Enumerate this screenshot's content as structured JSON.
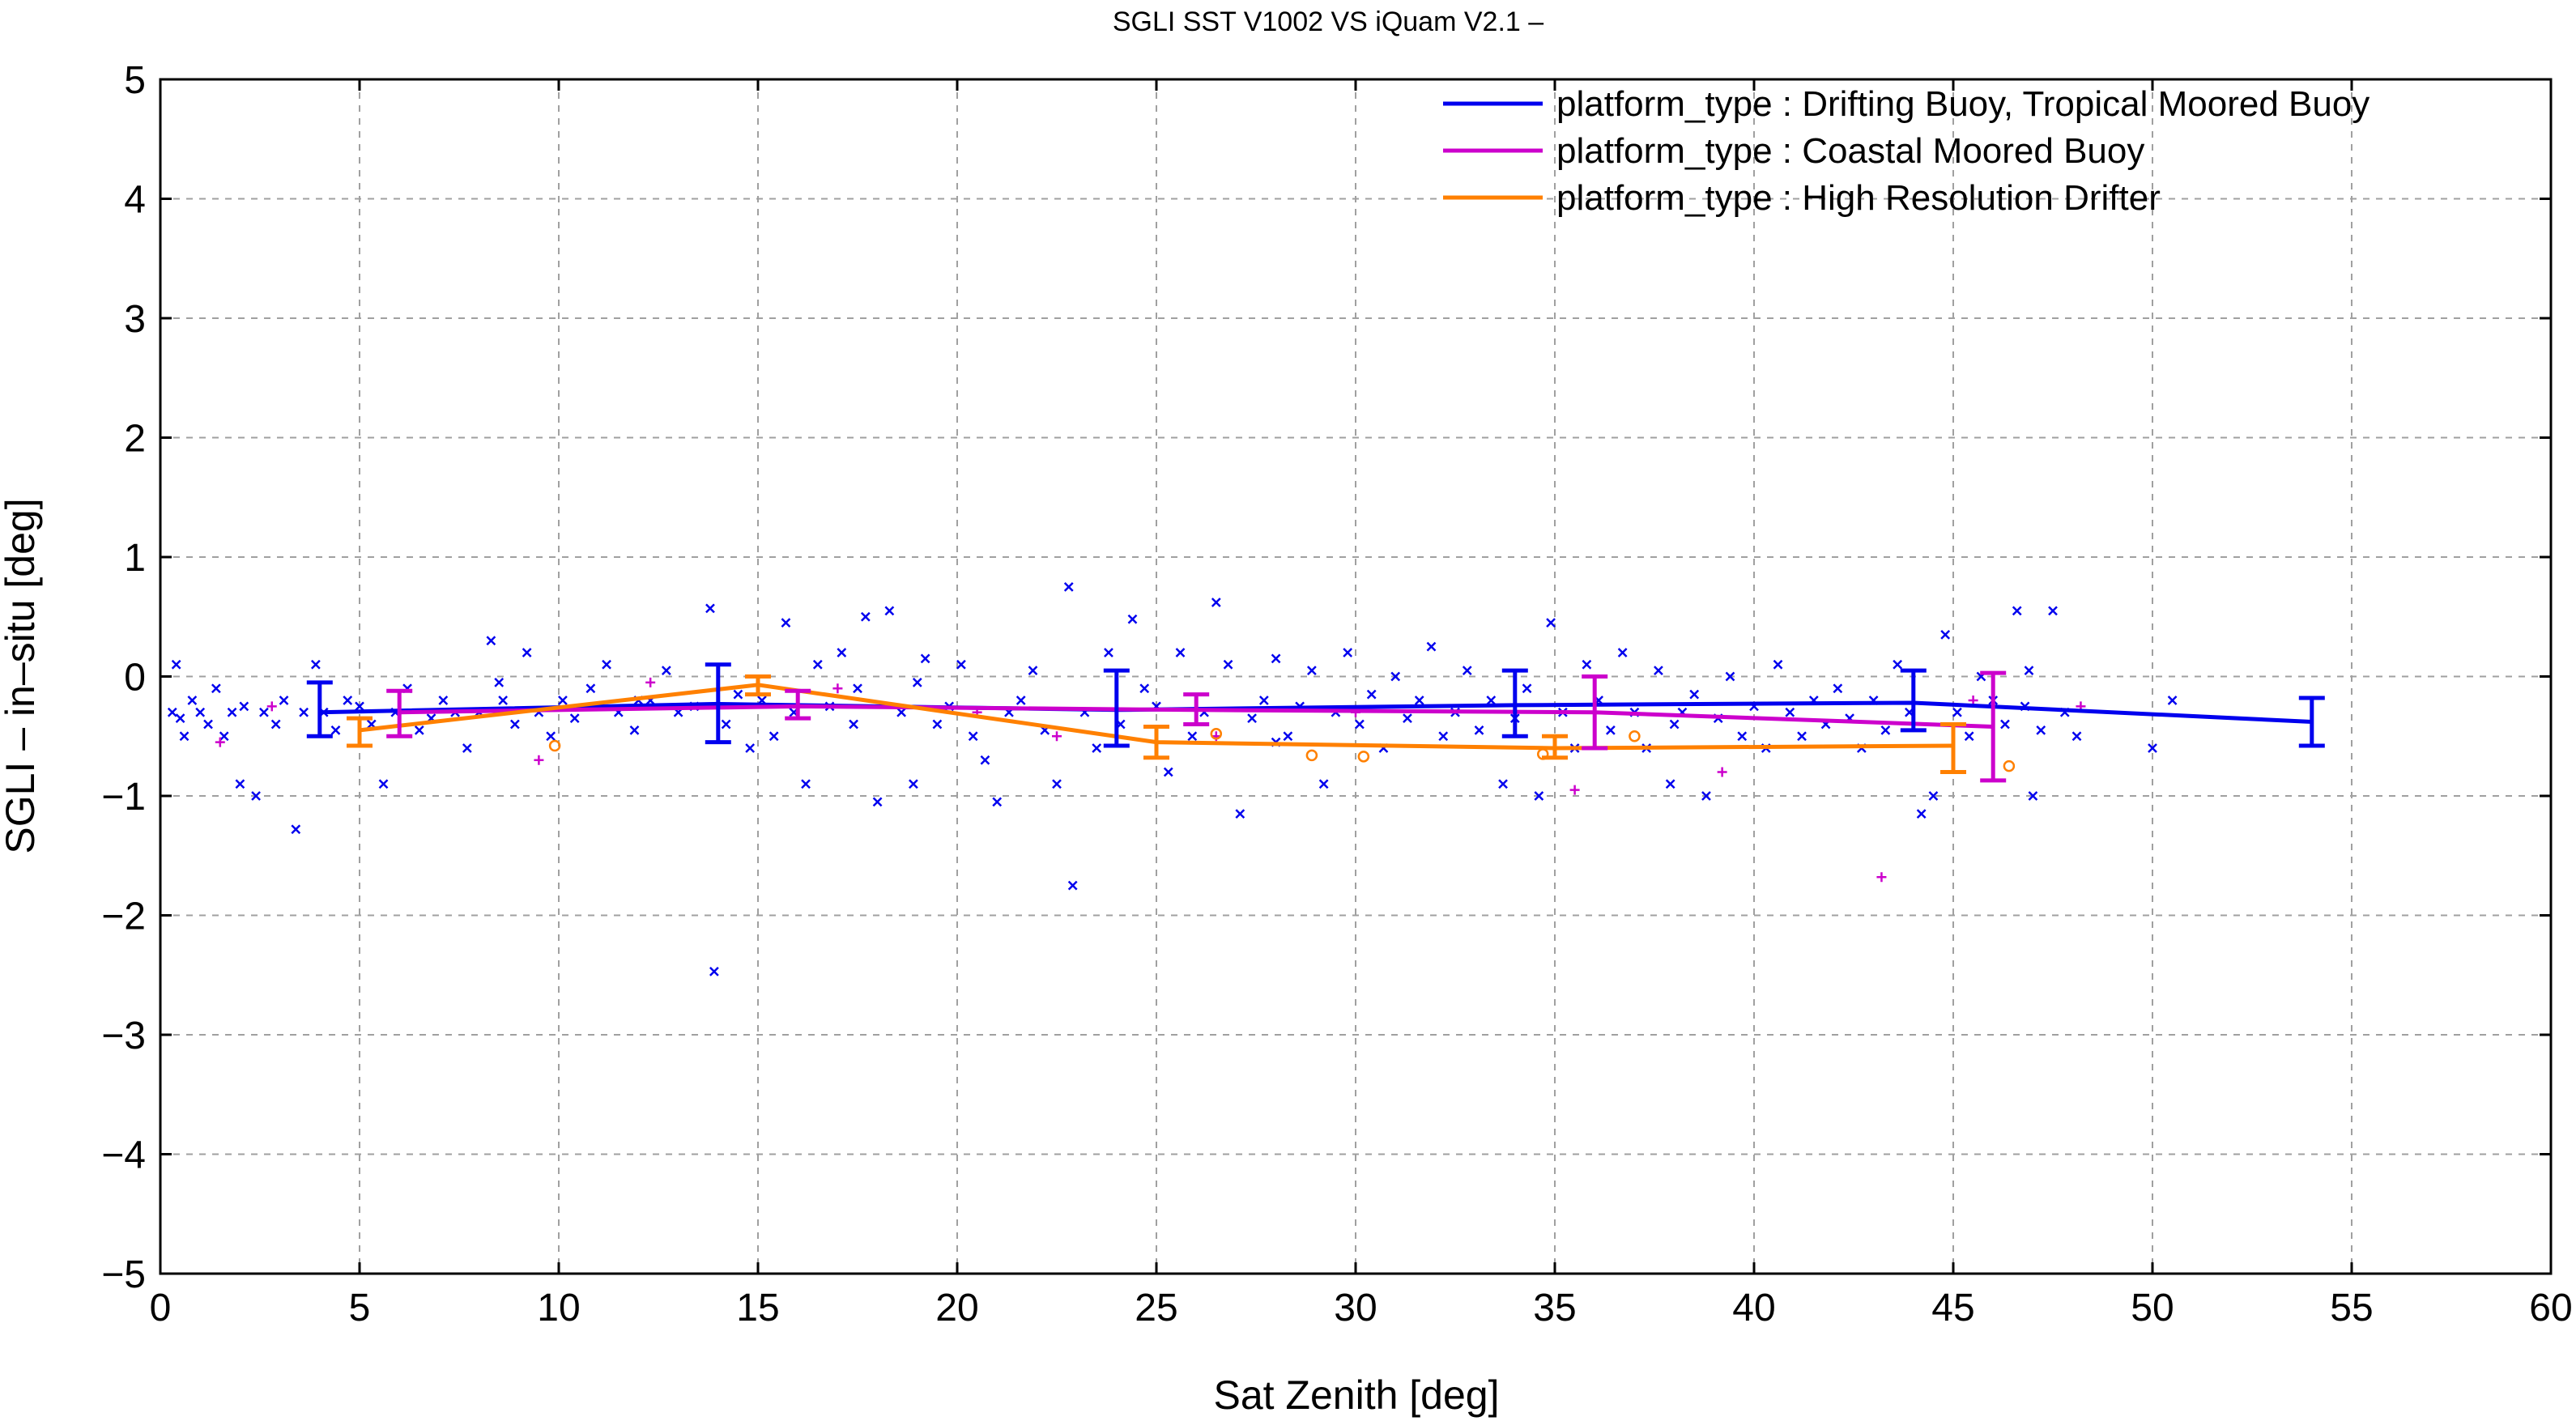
{
  "chart_data": {
    "type": "scatter",
    "title": "SGLI SST V1002 VS iQuam V2.1  –",
    "xlabel": "Sat Zenith [deg]",
    "ylabel": "SGLI – in–situ [deg]",
    "xlim": [
      0,
      60
    ],
    "ylim": [
      -5,
      5
    ],
    "xticks": [
      "0",
      "5",
      "10",
      "15",
      "20",
      "25",
      "30",
      "35",
      "40",
      "45",
      "50",
      "55",
      "60"
    ],
    "yticks": [
      "−5",
      "−4",
      "−3",
      "−2",
      "−1",
      "0",
      "1",
      "2",
      "3",
      "4",
      "5"
    ],
    "xtick_values": [
      0,
      5,
      10,
      15,
      20,
      25,
      30,
      35,
      40,
      45,
      50,
      55,
      60
    ],
    "ytick_values": [
      -5,
      -4,
      -3,
      -2,
      -1,
      0,
      1,
      2,
      3,
      4,
      5
    ],
    "grid": true,
    "legend_position": "top-right",
    "series": [
      {
        "name": "platform_type : Drifting Buoy, Tropical Moored Buoy",
        "color": "#0000ee",
        "marker": "x",
        "line": {
          "x": [
            4,
            14,
            24,
            34,
            44,
            54
          ],
          "y": [
            -0.3,
            -0.23,
            -0.28,
            -0.24,
            -0.22,
            -0.38
          ]
        },
        "errorbars": [
          {
            "x": 4,
            "ylow": -0.5,
            "yhigh": -0.05
          },
          {
            "x": 14,
            "ylow": -0.55,
            "yhigh": 0.1
          },
          {
            "x": 24,
            "ylow": -0.58,
            "yhigh": 0.05
          },
          {
            "x": 34,
            "ylow": -0.5,
            "yhigh": 0.05
          },
          {
            "x": 44,
            "ylow": -0.45,
            "yhigh": 0.05
          },
          {
            "x": 54,
            "ylow": -0.58,
            "yhigh": -0.18
          }
        ],
        "points": [
          [
            0.3,
            -0.3
          ],
          [
            0.4,
            0.1
          ],
          [
            0.5,
            -0.35
          ],
          [
            0.6,
            -0.5
          ],
          [
            0.8,
            -0.2
          ],
          [
            1.0,
            -0.3
          ],
          [
            1.2,
            -0.4
          ],
          [
            1.4,
            -0.1
          ],
          [
            1.6,
            -0.5
          ],
          [
            1.8,
            -0.3
          ],
          [
            2.0,
            -0.9
          ],
          [
            2.1,
            -0.25
          ],
          [
            2.4,
            -1.0
          ],
          [
            2.6,
            -0.3
          ],
          [
            2.9,
            -0.4
          ],
          [
            3.1,
            -0.2
          ],
          [
            3.4,
            -1.28
          ],
          [
            3.6,
            -0.3
          ],
          [
            3.9,
            0.1
          ],
          [
            4.1,
            -0.3
          ],
          [
            4.4,
            -0.45
          ],
          [
            4.7,
            -0.2
          ],
          [
            5.0,
            -0.25
          ],
          [
            5.3,
            -0.4
          ],
          [
            5.6,
            -0.9
          ],
          [
            5.9,
            -0.3
          ],
          [
            6.2,
            -0.1
          ],
          [
            6.5,
            -0.45
          ],
          [
            6.8,
            -0.35
          ],
          [
            7.1,
            -0.2
          ],
          [
            7.4,
            -0.3
          ],
          [
            7.7,
            -0.6
          ],
          [
            8.0,
            -0.3
          ],
          [
            8.3,
            0.3
          ],
          [
            8.6,
            -0.2
          ],
          [
            8.9,
            -0.4
          ],
          [
            9.2,
            0.2
          ],
          [
            9.5,
            -0.3
          ],
          [
            9.8,
            -0.5
          ],
          [
            10.1,
            -0.2
          ],
          [
            10.4,
            -0.35
          ],
          [
            10.8,
            -0.1
          ],
          [
            11.2,
            0.1
          ],
          [
            11.5,
            -0.3
          ],
          [
            11.9,
            -0.45
          ],
          [
            12.3,
            -0.2
          ],
          [
            12.7,
            0.05
          ],
          [
            13.0,
            -0.3
          ],
          [
            13.4,
            -0.25
          ],
          [
            13.8,
            0.57
          ],
          [
            13.9,
            -2.47
          ],
          [
            14.2,
            -0.4
          ],
          [
            14.5,
            -0.15
          ],
          [
            14.8,
            -0.6
          ],
          [
            15.1,
            -0.2
          ],
          [
            15.4,
            -0.5
          ],
          [
            15.7,
            0.45
          ],
          [
            15.9,
            -0.3
          ],
          [
            16.2,
            -0.9
          ],
          [
            16.5,
            0.1
          ],
          [
            16.8,
            -0.25
          ],
          [
            17.1,
            0.2
          ],
          [
            17.4,
            -0.4
          ],
          [
            17.7,
            0.5
          ],
          [
            18.0,
            -1.05
          ],
          [
            18.3,
            0.55
          ],
          [
            18.6,
            -0.3
          ],
          [
            18.9,
            -0.9
          ],
          [
            19.2,
            0.15
          ],
          [
            19.5,
            -0.4
          ],
          [
            19.8,
            -0.25
          ],
          [
            20.1,
            0.1
          ],
          [
            20.4,
            -0.5
          ],
          [
            20.7,
            -0.7
          ],
          [
            21.0,
            -1.05
          ],
          [
            21.3,
            -0.3
          ],
          [
            21.6,
            -0.2
          ],
          [
            21.9,
            0.05
          ],
          [
            22.2,
            -0.45
          ],
          [
            22.5,
            -0.9
          ],
          [
            22.8,
            0.75
          ],
          [
            22.9,
            -1.75
          ],
          [
            23.2,
            -0.3
          ],
          [
            23.5,
            -0.6
          ],
          [
            23.8,
            0.2
          ],
          [
            24.1,
            -0.4
          ],
          [
            24.4,
            0.48
          ],
          [
            24.7,
            -0.1
          ],
          [
            25.0,
            -0.25
          ],
          [
            25.3,
            -0.8
          ],
          [
            25.6,
            0.2
          ],
          [
            25.9,
            -0.5
          ],
          [
            26.2,
            -0.3
          ],
          [
            26.5,
            0.62
          ],
          [
            26.8,
            0.1
          ],
          [
            27.1,
            -1.15
          ],
          [
            27.4,
            -0.35
          ],
          [
            27.7,
            -0.2
          ],
          [
            28.0,
            0.15
          ],
          [
            28.3,
            -0.5
          ],
          [
            28.6,
            -0.25
          ],
          [
            28.9,
            0.05
          ],
          [
            29.2,
            -0.9
          ],
          [
            29.5,
            -0.3
          ],
          [
            29.8,
            0.2
          ],
          [
            30.1,
            -0.4
          ],
          [
            30.4,
            -0.15
          ],
          [
            30.7,
            -0.6
          ],
          [
            31.0,
            0.0
          ],
          [
            31.3,
            -0.35
          ],
          [
            31.6,
            -0.2
          ],
          [
            31.9,
            0.25
          ],
          [
            32.2,
            -0.5
          ],
          [
            32.5,
            -0.3
          ],
          [
            32.8,
            0.05
          ],
          [
            33.1,
            -0.45
          ],
          [
            33.4,
            -0.2
          ],
          [
            33.7,
            -0.9
          ],
          [
            34.0,
            -0.35
          ],
          [
            34.3,
            -0.1
          ],
          [
            34.6,
            -1.0
          ],
          [
            34.9,
            0.45
          ],
          [
            35.2,
            -0.3
          ],
          [
            35.5,
            -0.6
          ],
          [
            35.8,
            0.1
          ],
          [
            36.1,
            -0.2
          ],
          [
            36.4,
            -0.45
          ],
          [
            36.7,
            0.2
          ],
          [
            37.0,
            -0.3
          ],
          [
            37.3,
            -0.6
          ],
          [
            37.6,
            0.05
          ],
          [
            37.9,
            -0.9
          ],
          [
            38.2,
            -0.3
          ],
          [
            38.5,
            -0.15
          ],
          [
            38.8,
            -1.0
          ],
          [
            39.1,
            -0.35
          ],
          [
            39.4,
            0.0
          ],
          [
            39.7,
            -0.5
          ],
          [
            40.0,
            -0.25
          ],
          [
            40.3,
            -0.6
          ],
          [
            40.6,
            0.1
          ],
          [
            40.9,
            -0.3
          ],
          [
            41.2,
            -0.5
          ],
          [
            41.5,
            -0.2
          ],
          [
            41.8,
            -0.4
          ],
          [
            42.1,
            -0.1
          ],
          [
            42.4,
            -0.35
          ],
          [
            42.7,
            -0.6
          ],
          [
            43.0,
            -0.2
          ],
          [
            43.3,
            -0.45
          ],
          [
            43.6,
            0.1
          ],
          [
            43.9,
            -0.3
          ],
          [
            44.2,
            -1.15
          ],
          [
            44.5,
            -1.0
          ],
          [
            44.8,
            0.35
          ],
          [
            45.1,
            -0.3
          ],
          [
            45.4,
            -0.5
          ],
          [
            45.7,
            0.0
          ],
          [
            46.0,
            -0.2
          ],
          [
            46.3,
            -0.4
          ],
          [
            46.6,
            0.55
          ],
          [
            46.9,
            0.05
          ],
          [
            47.2,
            -0.45
          ],
          [
            47.5,
            0.55
          ],
          [
            47.8,
            -0.3
          ],
          [
            48.1,
            -0.5
          ],
          [
            50.0,
            -0.6
          ],
          [
            50.5,
            -0.2
          ],
          [
            47.0,
            -1.0
          ],
          [
            46.8,
            -0.25
          ],
          [
            17.5,
            -0.1
          ],
          [
            19.0,
            -0.05
          ],
          [
            8.5,
            -0.05
          ],
          [
            12.0,
            -0.2
          ],
          [
            28.0,
            -0.55
          ],
          [
            38.0,
            -0.4
          ]
        ]
      },
      {
        "name": "platform_type : Coastal Moored Buoy",
        "color": "#cc00cc",
        "marker": "+",
        "line": {
          "x": [
            6,
            16,
            26,
            36,
            46
          ],
          "y": [
            -0.3,
            -0.25,
            -0.28,
            -0.3,
            -0.42
          ]
        },
        "errorbars": [
          {
            "x": 6,
            "ylow": -0.5,
            "yhigh": -0.12
          },
          {
            "x": 16,
            "ylow": -0.35,
            "yhigh": -0.12
          },
          {
            "x": 26,
            "ylow": -0.4,
            "yhigh": -0.15
          },
          {
            "x": 36,
            "ylow": -0.6,
            "yhigh": 0.0
          },
          {
            "x": 46,
            "ylow": -0.87,
            "yhigh": 0.03
          }
        ],
        "points": [
          [
            1.5,
            -0.55
          ],
          [
            2.8,
            -0.25
          ],
          [
            9.5,
            -0.7
          ],
          [
            12.3,
            -0.05
          ],
          [
            17.0,
            -0.1
          ],
          [
            22.5,
            -0.5
          ],
          [
            26.5,
            -0.5
          ],
          [
            35.5,
            -0.95
          ],
          [
            39.2,
            -0.8
          ],
          [
            43.2,
            -1.68
          ],
          [
            45.5,
            -0.2
          ],
          [
            48.2,
            -0.25
          ],
          [
            30.0,
            -0.3
          ],
          [
            20.5,
            -0.3
          ]
        ]
      },
      {
        "name": "platform_type : High Resolution Drifter",
        "color": "#ff8000",
        "marker": "o",
        "line": {
          "x": [
            5,
            15,
            25,
            35,
            45
          ],
          "y": [
            -0.45,
            -0.07,
            -0.55,
            -0.6,
            -0.58
          ]
        },
        "errorbars": [
          {
            "x": 5,
            "ylow": -0.58,
            "yhigh": -0.35
          },
          {
            "x": 15,
            "ylow": -0.15,
            "yhigh": 0.0
          },
          {
            "x": 25,
            "ylow": -0.68,
            "yhigh": -0.42
          },
          {
            "x": 35,
            "ylow": -0.68,
            "yhigh": -0.5
          },
          {
            "x": 45,
            "ylow": -0.8,
            "yhigh": -0.4
          }
        ],
        "points": [
          [
            9.9,
            -0.58
          ],
          [
            26.5,
            -0.48
          ],
          [
            28.9,
            -0.66
          ],
          [
            30.2,
            -0.67
          ],
          [
            34.7,
            -0.65
          ],
          [
            37.0,
            -0.5
          ],
          [
            46.4,
            -0.75
          ]
        ]
      }
    ]
  }
}
